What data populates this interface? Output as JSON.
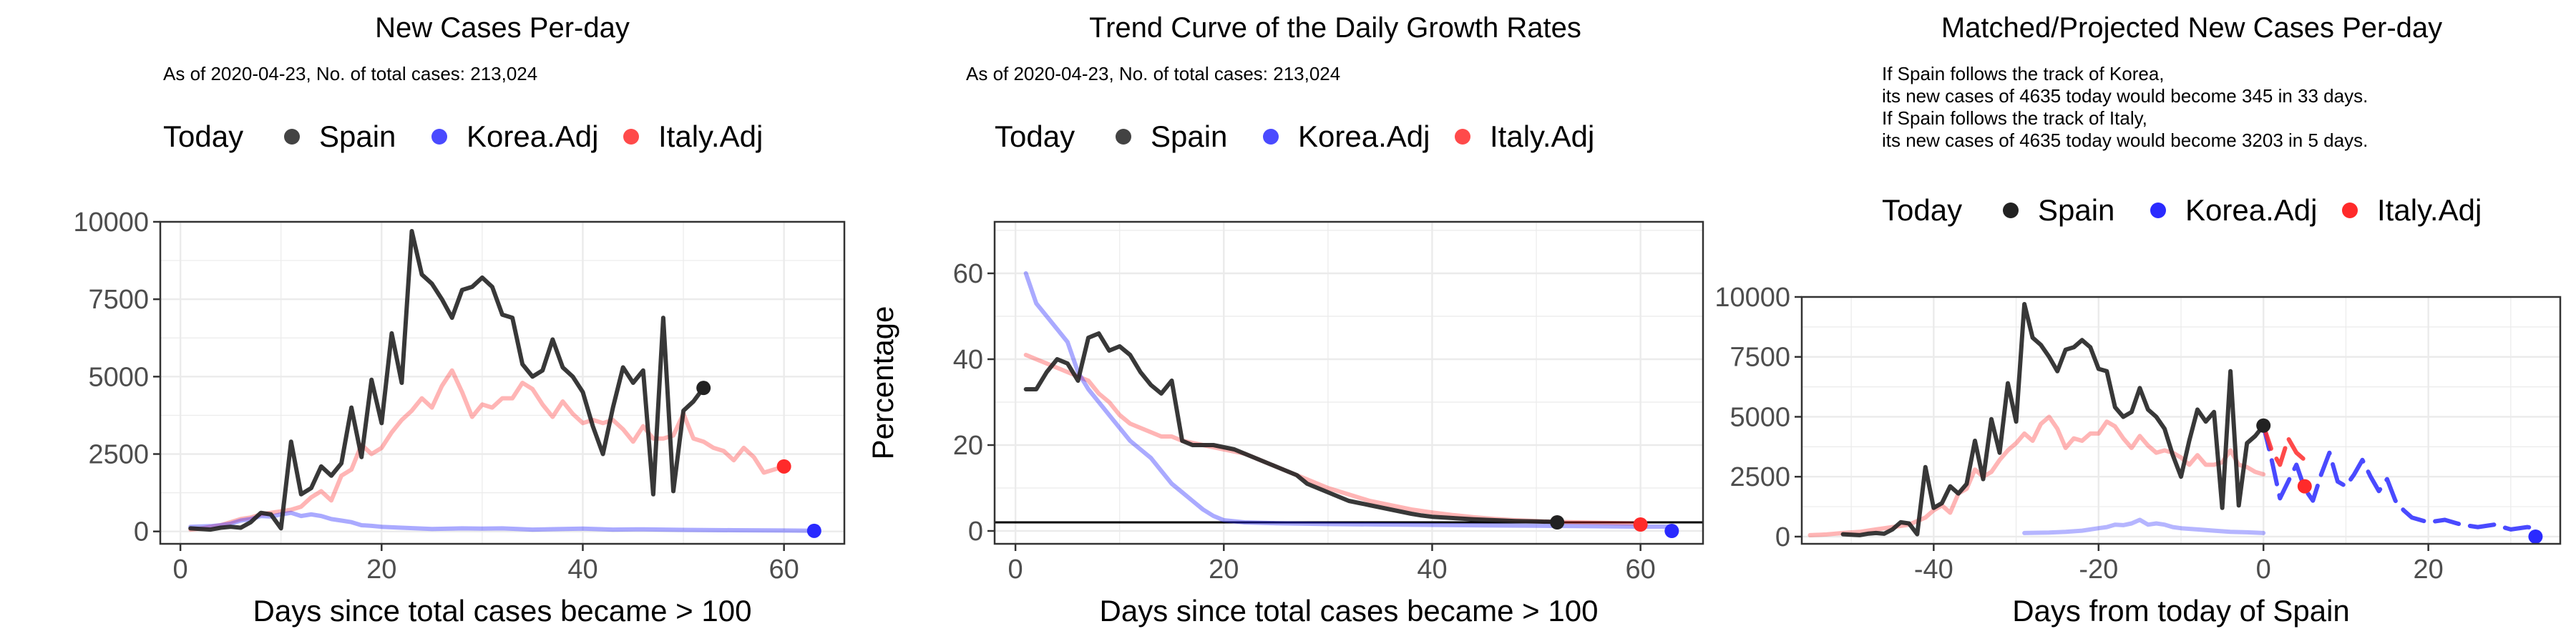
{
  "colors": {
    "spain": "#222222",
    "korea": "#2a2aff",
    "italy": "#ff2a2a",
    "korea_faint": "#a9a9f8",
    "italy_faint": "#f9b5b5",
    "grid": "#ebebeb",
    "frame": "#333333"
  },
  "legend": {
    "today": "Today",
    "spain": "Spain",
    "korea": "Korea.Adj",
    "italy": "Italy.Adj"
  },
  "chart_data": [
    {
      "type": "line",
      "title": "New Cases Per-day",
      "subtitle": "As of 2020-04-23, No. of total cases: 213,024",
      "xlabel": "Days since total cases became > 100",
      "ylabel": "",
      "xlim": [
        -2,
        66
      ],
      "ylim": [
        -400,
        10000
      ],
      "xticks": [
        0,
        20,
        40,
        60
      ],
      "yticks": [
        0,
        2500,
        5000,
        7500,
        10000
      ],
      "ytick_labels": [
        "0",
        "2500",
        "5000",
        "7500",
        "10000"
      ],
      "grid": true,
      "legend_position": "top",
      "series": [
        {
          "name": "Spain",
          "key": "spain",
          "alpha": 0.9,
          "x": [
            1,
            2,
            3,
            4,
            5,
            6,
            7,
            8,
            9,
            10,
            11,
            12,
            13,
            14,
            15,
            16,
            17,
            18,
            19,
            20,
            21,
            22,
            23,
            24,
            25,
            26,
            27,
            28,
            29,
            30,
            31,
            32,
            33,
            34,
            35,
            36,
            37,
            38,
            39,
            40,
            41,
            42,
            43,
            44,
            45,
            46,
            47,
            48,
            49,
            50,
            51,
            52
          ],
          "y": [
            100,
            80,
            60,
            120,
            150,
            120,
            300,
            600,
            550,
            100,
            2900,
            1200,
            1400,
            2100,
            1800,
            2200,
            4000,
            2400,
            4900,
            3500,
            6400,
            4800,
            9700,
            8300,
            8000,
            7500,
            6900,
            7800,
            7900,
            8200,
            7900,
            7000,
            6900,
            5400,
            5000,
            5200,
            6200,
            5300,
            5000,
            4500,
            3400,
            2500,
            4000,
            5300,
            4800,
            5200,
            1200,
            6900,
            1300,
            3900,
            4200,
            4635
          ]
        },
        {
          "name": "Korea.Adj",
          "key": "korea",
          "alpha": 0.4,
          "x": [
            1,
            2,
            3,
            4,
            5,
            6,
            7,
            8,
            9,
            10,
            11,
            12,
            13,
            14,
            15,
            16,
            17,
            18,
            19,
            20,
            22,
            25,
            28,
            30,
            32,
            35,
            38,
            40,
            43,
            46,
            50,
            55,
            60,
            63
          ],
          "y": [
            150,
            160,
            170,
            200,
            250,
            350,
            400,
            500,
            480,
            550,
            600,
            500,
            550,
            500,
            400,
            350,
            300,
            200,
            180,
            150,
            120,
            80,
            100,
            90,
            100,
            60,
            80,
            90,
            60,
            70,
            50,
            40,
            30,
            20
          ]
        },
        {
          "name": "Italy.Adj",
          "key": "italy",
          "alpha": 0.35,
          "x": [
            1,
            2,
            3,
            4,
            5,
            6,
            7,
            8,
            9,
            10,
            11,
            12,
            13,
            14,
            15,
            16,
            17,
            18,
            19,
            20,
            21,
            22,
            23,
            24,
            25,
            26,
            27,
            28,
            29,
            30,
            31,
            32,
            33,
            34,
            35,
            36,
            37,
            38,
            39,
            40,
            41,
            42,
            43,
            44,
            45,
            46,
            47,
            48,
            49,
            50,
            51,
            52,
            53,
            54,
            55,
            56,
            57,
            58,
            59,
            60
          ],
          "y": [
            60,
            90,
            150,
            200,
            300,
            400,
            450,
            550,
            600,
            650,
            700,
            800,
            1100,
            1300,
            1000,
            1800,
            2000,
            2800,
            2500,
            2700,
            3200,
            3600,
            3900,
            4300,
            4000,
            4700,
            5200,
            4500,
            3700,
            4100,
            4000,
            4300,
            4300,
            4800,
            4600,
            4100,
            3700,
            4200,
            3800,
            3500,
            3600,
            3500,
            3600,
            3300,
            2900,
            3400,
            3000,
            3000,
            3100,
            3800,
            3000,
            2900,
            2700,
            2600,
            2300,
            2700,
            2400,
            1900,
            2000,
            2100
          ]
        }
      ],
      "today_points": [
        {
          "key": "spain",
          "x": 52,
          "y": 4635
        },
        {
          "key": "korea",
          "x": 63,
          "y": 20
        },
        {
          "key": "italy",
          "x": 60,
          "y": 2100
        }
      ]
    },
    {
      "type": "line",
      "title": "Trend Curve of the Daily Growth Rates",
      "subtitle": "As of 2020-04-23, No. of total cases: 213,024",
      "xlabel": "Days since total cases became > 100",
      "ylabel": "Percentage",
      "xlim": [
        -2,
        66
      ],
      "ylim": [
        -3,
        72
      ],
      "xticks": [
        0,
        20,
        40,
        60
      ],
      "yticks": [
        0,
        20,
        40,
        60
      ],
      "ytick_labels": [
        "0",
        "20",
        "40",
        "60"
      ],
      "hline": 2,
      "grid": true,
      "legend_position": "top",
      "series": [
        {
          "name": "Spain",
          "key": "spain",
          "alpha": 0.9,
          "x": [
            1,
            2,
            3,
            4,
            5,
            6,
            7,
            8,
            9,
            10,
            11,
            12,
            13,
            14,
            15,
            16,
            17,
            18,
            19,
            20,
            21,
            22,
            23,
            24,
            25,
            26,
            27,
            28,
            29,
            30,
            31,
            32,
            33,
            34,
            35,
            36,
            37,
            38,
            39,
            40,
            42,
            44,
            46,
            48,
            50,
            52
          ],
          "y": [
            33,
            33,
            37,
            40,
            39,
            35,
            45,
            46,
            42,
            43,
            41,
            37,
            34,
            32,
            35,
            21,
            20,
            20,
            20,
            19.5,
            19,
            18,
            17,
            16,
            15,
            14,
            13,
            11,
            10,
            9,
            8,
            7,
            6.5,
            6,
            5.5,
            5,
            4.5,
            4,
            3.6,
            3.3,
            3,
            2.7,
            2.5,
            2.3,
            2.2,
            2.1
          ]
        },
        {
          "name": "Korea.Adj",
          "key": "korea",
          "alpha": 0.4,
          "x": [
            1,
            2,
            3,
            4,
            5,
            6,
            7,
            8,
            9,
            10,
            11,
            12,
            13,
            14,
            15,
            16,
            17,
            18,
            19,
            20,
            22,
            25,
            30,
            35,
            40,
            45,
            50,
            55,
            60,
            63
          ],
          "y": [
            60,
            53,
            50,
            47,
            44,
            37,
            33,
            30,
            27,
            24,
            21,
            19,
            17,
            14,
            11,
            9,
            7,
            5,
            3.5,
            2.5,
            2,
            1.8,
            1.6,
            1.5,
            1.4,
            1.3,
            1.2,
            1.1,
            1,
            1
          ]
        },
        {
          "name": "Italy.Adj",
          "key": "italy",
          "alpha": 0.35,
          "x": [
            1,
            2,
            3,
            4,
            5,
            6,
            7,
            8,
            9,
            10,
            11,
            12,
            13,
            14,
            15,
            16,
            18,
            20,
            22,
            24,
            26,
            28,
            30,
            32,
            34,
            36,
            38,
            40,
            42,
            44,
            46,
            48,
            50,
            52,
            54,
            56,
            58,
            60
          ],
          "y": [
            41,
            40,
            39,
            38,
            37,
            36,
            35,
            32,
            30,
            27,
            25,
            24,
            23,
            22,
            22,
            21,
            20,
            19,
            18,
            16,
            14,
            12,
            10,
            8.5,
            7,
            6,
            5,
            4.3,
            3.7,
            3.2,
            2.8,
            2.5,
            2.3,
            2.1,
            2,
            1.9,
            1.8,
            1.7
          ]
        }
      ],
      "today_points": [
        {
          "key": "spain",
          "x": 52,
          "y": 2
        },
        {
          "key": "korea",
          "x": 63,
          "y": 0
        },
        {
          "key": "italy",
          "x": 60,
          "y": 1.5
        }
      ]
    },
    {
      "type": "line",
      "title": "Matched/Projected New Cases Per-day",
      "subtitle_lines": [
        "If Spain follows the track of Korea,",
        "its new cases of 4635 today would become 345 in 33 days.",
        "If Spain follows the track of Italy,",
        "its new cases of 4635 today would become 3203 in 5 days."
      ],
      "xlabel": "Days from today of Spain",
      "ylabel": "",
      "xlim": [
        -56,
        36
      ],
      "ylim": [
        -300,
        10000
      ],
      "xticks": [
        -40,
        -20,
        0,
        20
      ],
      "yticks": [
        0,
        2500,
        5000,
        7500,
        10000
      ],
      "ytick_labels": [
        "0",
        "2500",
        "5000",
        "7500",
        "10000"
      ],
      "grid": true,
      "legend_position": "top",
      "series": [
        {
          "name": "Spain",
          "key": "spain",
          "alpha": 0.9,
          "dash": false,
          "x": [
            -51,
            -50,
            -49,
            -48,
            -47,
            -46,
            -45,
            -44,
            -43,
            -42,
            -41,
            -40,
            -39,
            -38,
            -37,
            -36,
            -35,
            -34,
            -33,
            -32,
            -31,
            -30,
            -29,
            -28,
            -27,
            -26,
            -25,
            -24,
            -23,
            -22,
            -21,
            -20,
            -19,
            -18,
            -17,
            -16,
            -15,
            -14,
            -13,
            -12,
            -11,
            -10,
            -9,
            -8,
            -7,
            -6,
            -5,
            -4,
            -3,
            -2,
            -1,
            0
          ],
          "y": [
            100,
            80,
            60,
            120,
            150,
            120,
            300,
            600,
            550,
            100,
            2900,
            1200,
            1400,
            2100,
            1800,
            2200,
            4000,
            2400,
            4900,
            3500,
            6400,
            4800,
            9700,
            8300,
            8000,
            7500,
            6900,
            7800,
            7900,
            8200,
            7900,
            7000,
            6900,
            5400,
            5000,
            5200,
            6200,
            5300,
            5000,
            4500,
            3400,
            2500,
            4000,
            5300,
            4800,
            5200,
            1200,
            6900,
            1300,
            3900,
            4200,
            4635
          ]
        },
        {
          "name": "Korea.Adj",
          "key": "korea",
          "alpha": 0.35,
          "dash": false,
          "x": [
            -29,
            -28,
            -26,
            -24,
            -22,
            -20,
            -19,
            -18,
            -17,
            -16,
            -15,
            -14,
            -13,
            -12,
            -11,
            -10,
            -8,
            -6,
            -4,
            -2,
            0
          ],
          "y": [
            150,
            160,
            170,
            200,
            250,
            350,
            400,
            500,
            480,
            550,
            700,
            500,
            550,
            500,
            400,
            350,
            300,
            250,
            200,
            180,
            150
          ]
        },
        {
          "name": "Italy.Adj",
          "key": "italy",
          "alpha": 0.35,
          "dash": false,
          "x": [
            -55,
            -53,
            -51,
            -49,
            -47,
            -45,
            -43,
            -42,
            -41,
            -40,
            -39,
            -38,
            -37,
            -36,
            -35,
            -34,
            -33,
            -32,
            -31,
            -30,
            -29,
            -28,
            -27,
            -26,
            -25,
            -24,
            -23,
            -22,
            -21,
            -20,
            -19,
            -18,
            -17,
            -16,
            -15,
            -14,
            -13,
            -12,
            -11,
            -10,
            -9,
            -8,
            -7,
            -6,
            -5,
            -4,
            -3,
            -2,
            -1,
            0
          ],
          "y": [
            60,
            90,
            150,
            200,
            300,
            400,
            500,
            650,
            800,
            1100,
            1300,
            1000,
            1800,
            2000,
            2800,
            2500,
            2700,
            3200,
            3600,
            3900,
            4300,
            4000,
            4700,
            5000,
            4500,
            3700,
            4100,
            4000,
            4300,
            4300,
            4800,
            4600,
            4100,
            3700,
            4200,
            3800,
            3500,
            3600,
            3500,
            3300,
            3000,
            3400,
            3000,
            3000,
            3100,
            3600,
            3000,
            2900,
            2700,
            2600
          ]
        },
        {
          "name": "Korea.Adj",
          "key": "korea",
          "alpha": 0.85,
          "dash": true,
          "x": [
            0,
            1,
            2,
            3,
            4,
            5,
            6,
            7,
            8,
            9,
            10,
            11,
            12,
            13,
            14,
            15,
            16,
            17,
            18,
            20,
            22,
            24,
            26,
            28,
            30,
            32,
            33
          ],
          "y": [
            4635,
            3200,
            1600,
            2300,
            3000,
            2000,
            1500,
            2600,
            3500,
            2300,
            2100,
            2600,
            3200,
            2500,
            1900,
            2400,
            1500,
            1100,
            800,
            600,
            700,
            500,
            400,
            500,
            300,
            400,
            345
          ]
        },
        {
          "name": "Italy.Adj",
          "key": "italy",
          "alpha": 0.85,
          "dash": true,
          "x": [
            0,
            1,
            2,
            3,
            4,
            5
          ],
          "y": [
            4635,
            3600,
            3000,
            4100,
            3500,
            3203
          ]
        }
      ],
      "today_points": [
        {
          "key": "spain",
          "x": 0,
          "y": 4635
        },
        {
          "key": "korea",
          "x": 33,
          "y": 0
        },
        {
          "key": "italy",
          "x": 5,
          "y": 2100
        }
      ]
    }
  ]
}
